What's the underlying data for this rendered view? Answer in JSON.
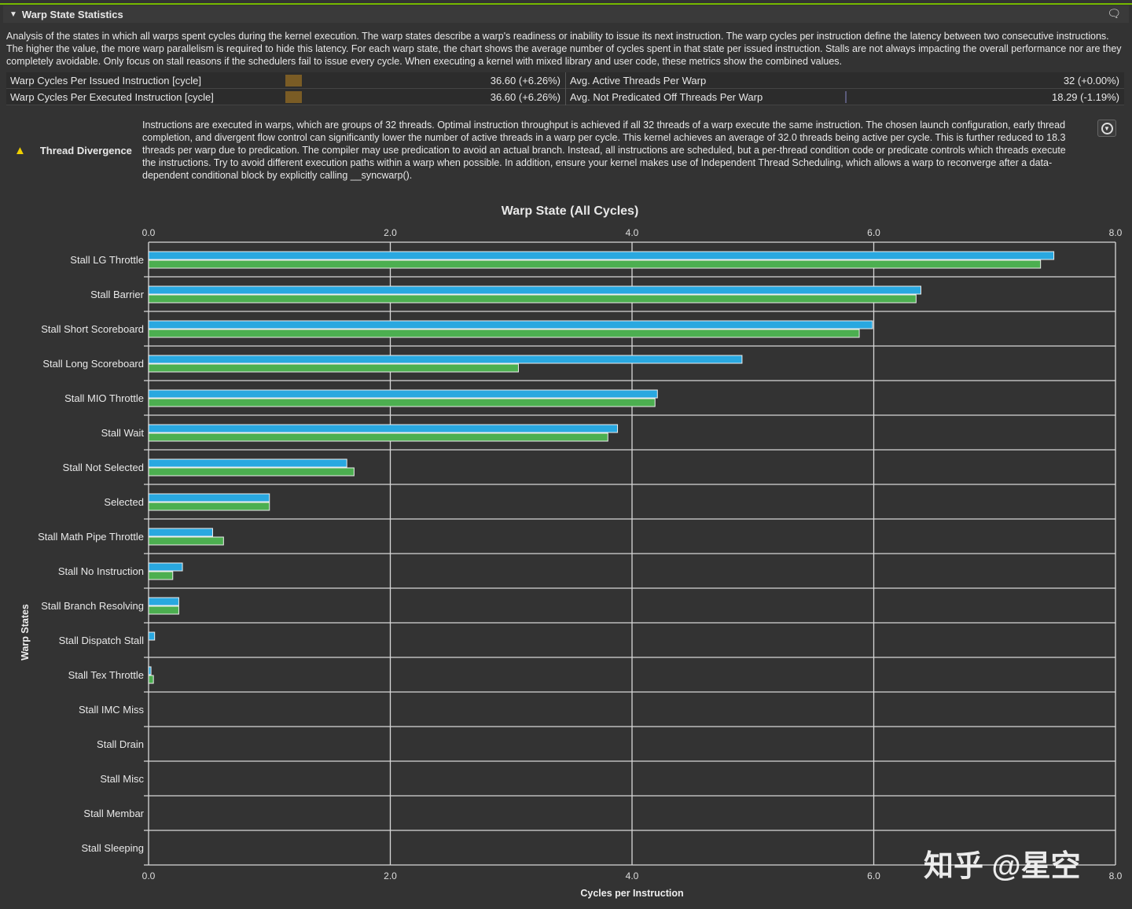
{
  "section": {
    "title": "Warp State Statistics",
    "comment_icon": "speech-bubble-icon"
  },
  "description": "Analysis of the states in which all warps spent cycles during the kernel execution. The warp states describe a warp's readiness or inability to issue its next instruction. The warp cycles per instruction define the latency between two consecutive instructions. The higher the value, the more warp parallelism is required to hide this latency. For each warp state, the chart shows the average number of cycles spent in that state per issued instruction. Stalls are not always impacting the overall performance nor are they completely avoidable. Only focus on stall reasons if the schedulers fail to issue every cycle. When executing a kernel with mixed library and user code, these metrics show the combined values.",
  "metrics": [
    {
      "left_label": "Warp Cycles Per Issued Instruction [cycle]",
      "left_value": "36.60  (+6.26%)",
      "right_label": "Avg. Active Threads Per Warp",
      "right_value": "32  (+0.00%)"
    },
    {
      "left_label": "Warp Cycles Per Executed Instruction [cycle]",
      "left_value": "36.60  (+6.26%)",
      "right_label": "Avg. Not Predicated Off Threads Per Warp",
      "right_value": "18.29  (-1.19%)"
    }
  ],
  "warning": {
    "icon": "warning-triangle-icon",
    "label": "Thread Divergence",
    "text": "Instructions are executed in warps, which are groups of 32 threads. Optimal instruction throughput is achieved if all 32 threads of a warp execute the same instruction. The chosen launch configuration, early thread completion, and divergent flow control can significantly lower the number of active threads in a warp per cycle. This kernel achieves an average of 32.0 threads being active per cycle. This is further reduced to 18.3 threads per warp due to predication. The compiler may use predication to avoid an actual branch. Instead, all instructions are scheduled, but a per-thread condition code or predicate controls which threads execute the instructions. Try to avoid different execution paths within a warp when possible. In addition, ensure your kernel makes use of Independent Thread Scheduling, which allows a warp to reconverge after a data-dependent conditional block by explicitly calling __syncwarp()."
  },
  "watermark": "知乎 @星空",
  "chart_data": {
    "type": "bar",
    "orientation": "horizontal",
    "title": "Warp State (All Cycles)",
    "xlabel": "Cycles per Instruction",
    "ylabel": "Warp States",
    "xlim": [
      0,
      8
    ],
    "xticks": [
      "0.0",
      "2.0",
      "4.0",
      "6.0",
      "8.0"
    ],
    "grid": true,
    "colors": [
      "#29a8e0",
      "#4caf50"
    ],
    "categories": [
      "Stall LG Throttle",
      "Stall Barrier",
      "Stall Short Scoreboard",
      "Stall Long Scoreboard",
      "Stall MIO Throttle",
      "Stall Wait",
      "Stall Not Selected",
      "Selected",
      "Stall Math Pipe Throttle",
      "Stall No Instruction",
      "Stall Branch Resolving",
      "Stall Dispatch Stall",
      "Stall Tex Throttle",
      "Stall IMC Miss",
      "Stall Drain",
      "Stall Misc",
      "Stall Membar",
      "Stall Sleeping"
    ],
    "series": [
      {
        "values": [
          7.49,
          6.39,
          5.99,
          4.91,
          4.21,
          3.88,
          1.64,
          1.0,
          0.53,
          0.28,
          0.25,
          0.05,
          0.02,
          0,
          0,
          0,
          0,
          0
        ]
      },
      {
        "values": [
          7.38,
          6.35,
          5.88,
          3.06,
          4.19,
          3.8,
          1.7,
          1.0,
          0.62,
          0.2,
          0.25,
          0,
          0.04,
          0,
          0,
          0,
          0,
          0
        ]
      }
    ]
  }
}
